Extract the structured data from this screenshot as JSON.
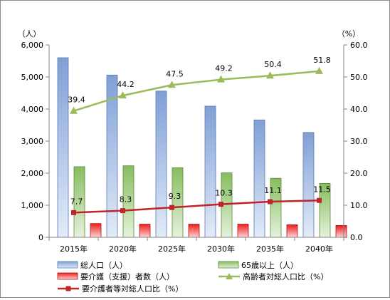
{
  "chart_data": {
    "type": "bar",
    "categories": [
      "2015年",
      "2020年",
      "2025年",
      "2030年",
      "2035年",
      "2040年"
    ],
    "left_axis": {
      "unit": "（人）",
      "range": [
        0,
        6000
      ],
      "step": 1000,
      "tick_labels": [
        "0",
        "1,000",
        "2,000",
        "3,000",
        "4,000",
        "5,000",
        "6,000"
      ]
    },
    "right_axis": {
      "unit": "（%）",
      "range": [
        0,
        60
      ],
      "step": 10,
      "tick_labels": [
        "0.0",
        "10.0",
        "20.0",
        "30.0",
        "40.0",
        "50.0",
        "60.0"
      ]
    },
    "grid": false,
    "legend_position": "bottom",
    "series": [
      {
        "name": "総人口（人）",
        "type": "bar",
        "axis": "left",
        "color": "#8eaadb",
        "values": [
          5600,
          5060,
          4560,
          4090,
          3660,
          3270
        ]
      },
      {
        "name": "65歳以上（人）",
        "type": "bar",
        "axis": "left",
        "color": "#92c47a",
        "values": [
          2200,
          2230,
          2170,
          2010,
          1840,
          1680
        ]
      },
      {
        "name": "要介護（支援）者数（人）",
        "type": "bar",
        "axis": "left",
        "color": "#e02020",
        "values": [
          430,
          410,
          410,
          410,
          390,
          370
        ]
      },
      {
        "name": "高齢者対総人口比（%）",
        "type": "line",
        "axis": "right",
        "color": "#9bbb59",
        "marker": "triangle",
        "values": [
          39.4,
          44.2,
          47.5,
          49.2,
          50.4,
          51.8
        ],
        "labels": [
          "39.4",
          "44.2",
          "47.5",
          "49.2",
          "50.4",
          "51.8"
        ]
      },
      {
        "name": "要介護者等対総人口比（%）",
        "type": "line",
        "axis": "right",
        "color": "#c0242b",
        "marker": "square",
        "values": [
          7.7,
          8.3,
          9.3,
          10.3,
          11.1,
          11.5
        ],
        "labels": [
          "7.7",
          "8.3",
          "9.3",
          "10.3",
          "11.1",
          "11.5"
        ]
      }
    ]
  }
}
